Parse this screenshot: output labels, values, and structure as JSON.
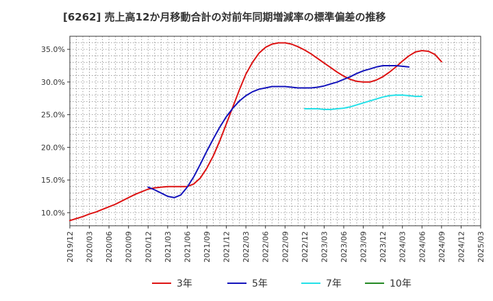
{
  "title": "[6262]  売上高12か月移動合計の対前年同期増減率の標準偏差の推移",
  "chart_data": {
    "type": "line",
    "title": "[6262]  売上高12か月移動合計の対前年同期増減率の標準偏差の推移",
    "x_ticks": [
      "2019/12",
      "2020/03",
      "2020/06",
      "2020/09",
      "2020/12",
      "2021/03",
      "2021/06",
      "2021/09",
      "2021/12",
      "2022/03",
      "2022/06",
      "2022/09",
      "2022/12",
      "2023/03",
      "2023/06",
      "2023/09",
      "2023/12",
      "2024/03",
      "2024/06",
      "2024/09",
      "2024/12",
      "2025/03"
    ],
    "y_ticks": [
      "10.0%",
      "15.0%",
      "20.0%",
      "25.0%",
      "30.0%",
      "35.0%"
    ],
    "xlim": [
      "2019/12",
      "2025/03"
    ],
    "ylim": [
      8.0,
      37.0
    ],
    "grid": true,
    "legend_position": "bottom",
    "series": [
      {
        "name": "3年",
        "color": "#dd1111",
        "points": [
          [
            "2019/12",
            8.8
          ],
          [
            "2020/01",
            9.1
          ],
          [
            "2020/02",
            9.4
          ],
          [
            "2020/03",
            9.8
          ],
          [
            "2020/04",
            10.1
          ],
          [
            "2020/05",
            10.5
          ],
          [
            "2020/06",
            10.9
          ],
          [
            "2020/07",
            11.3
          ],
          [
            "2020/08",
            11.8
          ],
          [
            "2020/09",
            12.3
          ],
          [
            "2020/10",
            12.8
          ],
          [
            "2020/11",
            13.2
          ],
          [
            "2020/12",
            13.6
          ],
          [
            "2021/01",
            13.8
          ],
          [
            "2021/02",
            13.9
          ],
          [
            "2021/03",
            14.0
          ],
          [
            "2021/04",
            14.0
          ],
          [
            "2021/05",
            14.0
          ],
          [
            "2021/06",
            14.0
          ],
          [
            "2021/07",
            14.4
          ],
          [
            "2021/08",
            15.3
          ],
          [
            "2021/09",
            16.8
          ],
          [
            "2021/10",
            18.7
          ],
          [
            "2021/11",
            21.0
          ],
          [
            "2021/12",
            23.6
          ],
          [
            "2022/01",
            26.2
          ],
          [
            "2022/02",
            28.8
          ],
          [
            "2022/03",
            31.2
          ],
          [
            "2022/04",
            33.0
          ],
          [
            "2022/05",
            34.4
          ],
          [
            "2022/06",
            35.3
          ],
          [
            "2022/07",
            35.8
          ],
          [
            "2022/08",
            36.0
          ],
          [
            "2022/09",
            36.0
          ],
          [
            "2022/10",
            35.8
          ],
          [
            "2022/11",
            35.4
          ],
          [
            "2022/12",
            34.9
          ],
          [
            "2023/01",
            34.3
          ],
          [
            "2023/02",
            33.6
          ],
          [
            "2023/03",
            32.9
          ],
          [
            "2023/04",
            32.2
          ],
          [
            "2023/05",
            31.5
          ],
          [
            "2023/06",
            30.9
          ],
          [
            "2023/07",
            30.4
          ],
          [
            "2023/08",
            30.1
          ],
          [
            "2023/09",
            30.0
          ],
          [
            "2023/10",
            30.0
          ],
          [
            "2023/11",
            30.3
          ],
          [
            "2023/12",
            30.8
          ],
          [
            "2024/01",
            31.5
          ],
          [
            "2024/02",
            32.3
          ],
          [
            "2024/03",
            33.2
          ],
          [
            "2024/04",
            34.0
          ],
          [
            "2024/05",
            34.6
          ],
          [
            "2024/06",
            34.8
          ],
          [
            "2024/07",
            34.7
          ],
          [
            "2024/08",
            34.2
          ],
          [
            "2024/09",
            33.1
          ]
        ]
      },
      {
        "name": "5年",
        "color": "#1111bb",
        "points": [
          [
            "2020/12",
            13.9
          ],
          [
            "2021/01",
            13.5
          ],
          [
            "2021/02",
            13.0
          ],
          [
            "2021/03",
            12.5
          ],
          [
            "2021/04",
            12.3
          ],
          [
            "2021/05",
            12.7
          ],
          [
            "2021/06",
            13.9
          ],
          [
            "2021/07",
            15.5
          ],
          [
            "2021/08",
            17.4
          ],
          [
            "2021/09",
            19.4
          ],
          [
            "2021/10",
            21.3
          ],
          [
            "2021/11",
            23.1
          ],
          [
            "2021/12",
            24.7
          ],
          [
            "2022/01",
            26.0
          ],
          [
            "2022/02",
            27.1
          ],
          [
            "2022/03",
            27.9
          ],
          [
            "2022/04",
            28.5
          ],
          [
            "2022/05",
            28.9
          ],
          [
            "2022/06",
            29.1
          ],
          [
            "2022/07",
            29.3
          ],
          [
            "2022/08",
            29.3
          ],
          [
            "2022/09",
            29.3
          ],
          [
            "2022/10",
            29.2
          ],
          [
            "2022/11",
            29.1
          ],
          [
            "2022/12",
            29.1
          ],
          [
            "2023/01",
            29.1
          ],
          [
            "2023/02",
            29.2
          ],
          [
            "2023/03",
            29.4
          ],
          [
            "2023/04",
            29.7
          ],
          [
            "2023/05",
            30.0
          ],
          [
            "2023/06",
            30.4
          ],
          [
            "2023/07",
            30.8
          ],
          [
            "2023/08",
            31.3
          ],
          [
            "2023/09",
            31.7
          ],
          [
            "2023/10",
            32.0
          ],
          [
            "2023/11",
            32.3
          ],
          [
            "2023/12",
            32.5
          ],
          [
            "2024/01",
            32.5
          ],
          [
            "2024/02",
            32.5
          ],
          [
            "2024/03",
            32.4
          ],
          [
            "2024/04",
            32.3
          ]
        ]
      },
      {
        "name": "7年",
        "color": "#22e0e8",
        "points": [
          [
            "2022/12",
            25.9
          ],
          [
            "2023/01",
            25.9
          ],
          [
            "2023/02",
            25.9
          ],
          [
            "2023/03",
            25.8
          ],
          [
            "2023/04",
            25.8
          ],
          [
            "2023/05",
            25.9
          ],
          [
            "2023/06",
            26.0
          ],
          [
            "2023/07",
            26.2
          ],
          [
            "2023/08",
            26.5
          ],
          [
            "2023/09",
            26.8
          ],
          [
            "2023/10",
            27.1
          ],
          [
            "2023/11",
            27.4
          ],
          [
            "2023/12",
            27.7
          ],
          [
            "2024/01",
            27.9
          ],
          [
            "2024/02",
            28.0
          ],
          [
            "2024/03",
            28.0
          ],
          [
            "2024/04",
            27.9
          ],
          [
            "2024/05",
            27.8
          ],
          [
            "2024/06",
            27.8
          ]
        ]
      },
      {
        "name": "10年",
        "color": "#228822",
        "points": []
      }
    ]
  }
}
